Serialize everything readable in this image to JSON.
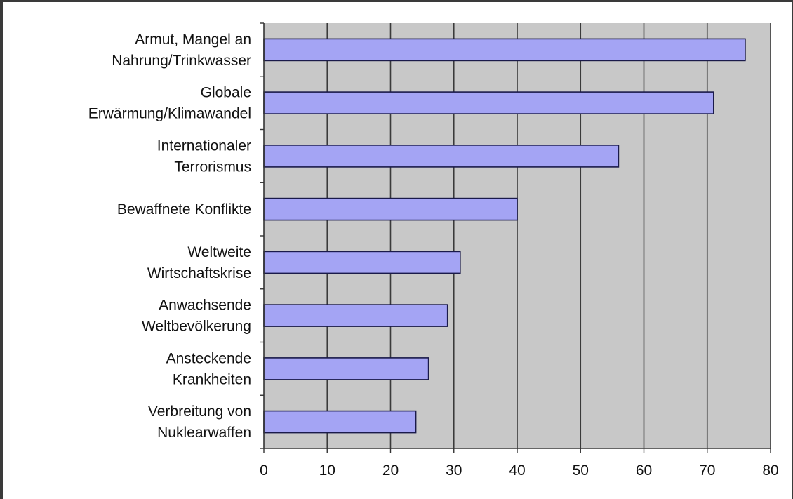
{
  "chart_data": {
    "type": "bar",
    "orientation": "horizontal",
    "categories": [
      [
        "Armut, Mangel an",
        "Nahrung/Trinkwasser"
      ],
      [
        "Globale",
        "Erwärmung/Klimawandel"
      ],
      [
        "Internationaler",
        "Terrorismus"
      ],
      [
        "Bewaffnete Konflikte"
      ],
      [
        "Weltweite",
        "Wirtschaftskrise"
      ],
      [
        "Anwachsende",
        "Weltbevölkerung"
      ],
      [
        "Ansteckende",
        "Krankheiten"
      ],
      [
        "Verbreitung von",
        "Nuklearwaffen"
      ]
    ],
    "values": [
      76,
      71,
      56,
      40,
      31,
      29,
      26,
      24
    ],
    "xlim": [
      0,
      80
    ],
    "xticks": [
      0,
      10,
      20,
      30,
      40,
      50,
      60,
      70,
      80
    ],
    "grid": true,
    "title": "",
    "xlabel": "",
    "ylabel": "",
    "colors": {
      "bar_fill": "#a4a4f4",
      "bar_stroke": "#1a1a4a",
      "plot_background": "#c8c8c8",
      "gridline": "#3a3a3a"
    }
  }
}
